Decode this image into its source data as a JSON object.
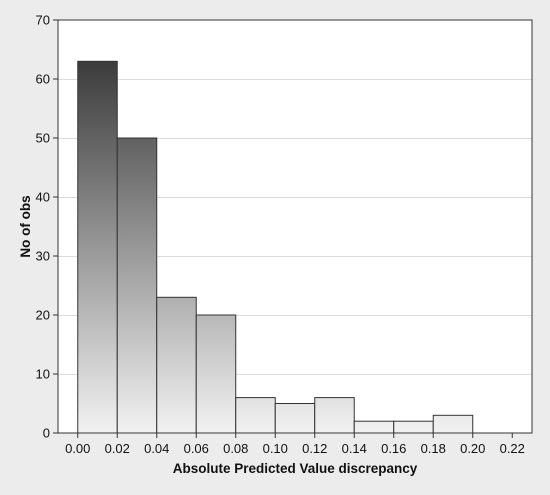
{
  "chart_data": {
    "type": "bar",
    "subtype": "histogram",
    "title": "",
    "xlabel": "Absolute Predicted Value discrepancy",
    "ylabel": "No of obs",
    "bin_edges": [
      0.0,
      0.02,
      0.04,
      0.06,
      0.08,
      0.1,
      0.12,
      0.14,
      0.16,
      0.18,
      0.2
    ],
    "values": [
      63,
      50,
      23,
      20,
      6,
      5,
      6,
      2,
      2,
      3
    ],
    "xlim": [
      -0.01,
      0.23
    ],
    "ylim": [
      0,
      70
    ],
    "xticks": [
      "0.00",
      "0.02",
      "0.04",
      "0.06",
      "0.08",
      "0.10",
      "0.12",
      "0.14",
      "0.16",
      "0.18",
      "0.20",
      "0.22"
    ],
    "xtick_values": [
      0.0,
      0.02,
      0.04,
      0.06,
      0.08,
      0.1,
      0.12,
      0.14,
      0.16,
      0.18,
      0.2,
      0.22
    ],
    "yticks": [
      "0",
      "10",
      "20",
      "30",
      "40",
      "50",
      "60",
      "70"
    ],
    "ytick_values": [
      0,
      10,
      20,
      30,
      40,
      50,
      60,
      70
    ],
    "grid": "horizontal",
    "legend": "none",
    "fill": "vertical gradient, dark at top of tallest bar to light at baseline",
    "colors": {
      "frame_background": "#ececec",
      "plot_background": "#ffffff",
      "grid": "#dcdcdc",
      "bar_dark": "#3c3c3c",
      "bar_light": "#f2f2f2",
      "bar_outline": "#333333",
      "axis": "#333333",
      "text": "#111111"
    }
  }
}
